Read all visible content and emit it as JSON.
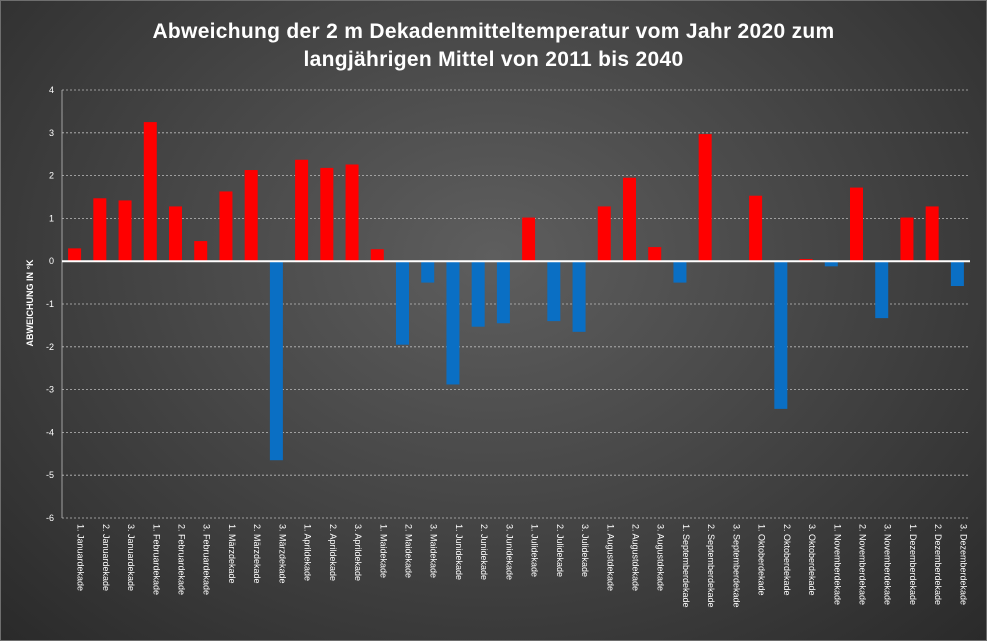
{
  "chart_data": {
    "type": "bar",
    "title_line1": "Abweichung der 2 m Dekadenmitteltemperatur vom Jahr 2020 zum",
    "title_line2": "langjährigen Mittel von 2011 bis 2040",
    "ylabel": "ABWEICHUNG IN °K",
    "xlabel": "",
    "ylim": [
      -6,
      4
    ],
    "yticks": [
      "-6",
      "-5",
      "-4",
      "-3",
      "-2",
      "-1",
      "0",
      "1",
      "2",
      "3",
      "4"
    ],
    "grid": true,
    "positive_color": "#ff0000",
    "negative_color": "#0a6fc4",
    "categories": [
      "1. Januardekade",
      "2. Januardekade",
      "3. Januardekade",
      "1. Februardekade",
      "2. Februardekade",
      "3. Februardekade",
      "1. Märzdekade",
      "2. Märzdekade",
      "3. Märzdekade",
      "1. Aprildekade",
      "2. Aprildekade",
      "3. Aprildekade",
      "1. Maidekade",
      "2. Maidekade",
      "3. Maidekade",
      "1. Junidekade",
      "2. Junidekade",
      "3. Junidekade",
      "1. Julidekade",
      "2. Julidekade",
      "3. Julidekade",
      "1. Augustdekade",
      "2. Augustdekade",
      "3. Augustdekade",
      "1. Septemberdekade",
      "2. Septemberdekade",
      "3. Septemberdekade",
      "1. Oktoberdekade",
      "2. Oktoberdekade",
      "3. Oktoberdekade",
      "1. Novemberdekade",
      "2. Novemberdekade",
      "3. Novemberdekade",
      "1. Dezemberdekade",
      "2. Dezemberdekade",
      "3. Dezemberdekade"
    ],
    "values": [
      0.3,
      1.47,
      1.42,
      3.25,
      1.28,
      0.47,
      1.63,
      2.13,
      -4.65,
      2.37,
      2.18,
      2.26,
      0.28,
      -1.95,
      -0.5,
      -2.88,
      -1.53,
      -1.45,
      1.02,
      -1.4,
      -1.65,
      1.28,
      1.95,
      0.33,
      -0.5,
      2.97,
      0.0,
      1.53,
      -3.45,
      0.05,
      -0.12,
      1.72,
      -1.33,
      1.02,
      1.28,
      -0.58
    ]
  }
}
